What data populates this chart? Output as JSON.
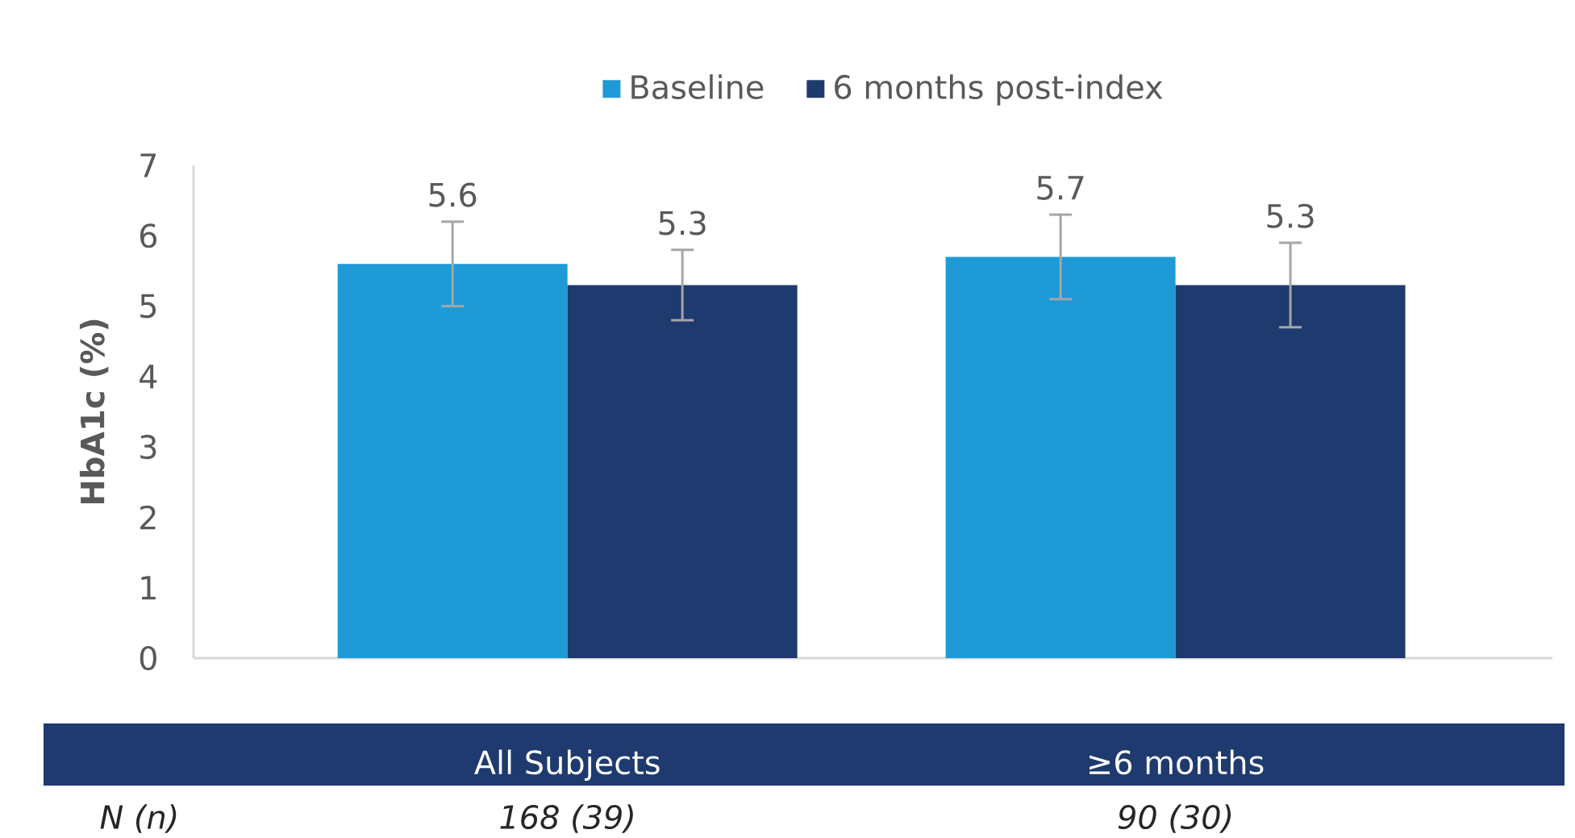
{
  "chart_data": {
    "type": "bar",
    "ylabel": "HbA1c (%)",
    "categories": [
      "All Subjects",
      "≥6 months"
    ],
    "series": [
      {
        "name": "Baseline",
        "color": "#1e9ad6",
        "values": [
          5.6,
          5.7
        ],
        "errors": [
          0.6,
          0.6
        ]
      },
      {
        "name": "6 months post-index",
        "color": "#1f3a6e",
        "values": [
          5.3,
          5.3
        ],
        "errors": [
          0.5,
          0.6
        ]
      }
    ],
    "ylim": [
      0,
      7
    ],
    "yticks": [
      0,
      1,
      2,
      3,
      4,
      5,
      6,
      7
    ],
    "data_labels": true,
    "legend": "top",
    "grid": false,
    "annotations": [
      "N (n)",
      "168 (39)",
      "90 (30)"
    ]
  }
}
